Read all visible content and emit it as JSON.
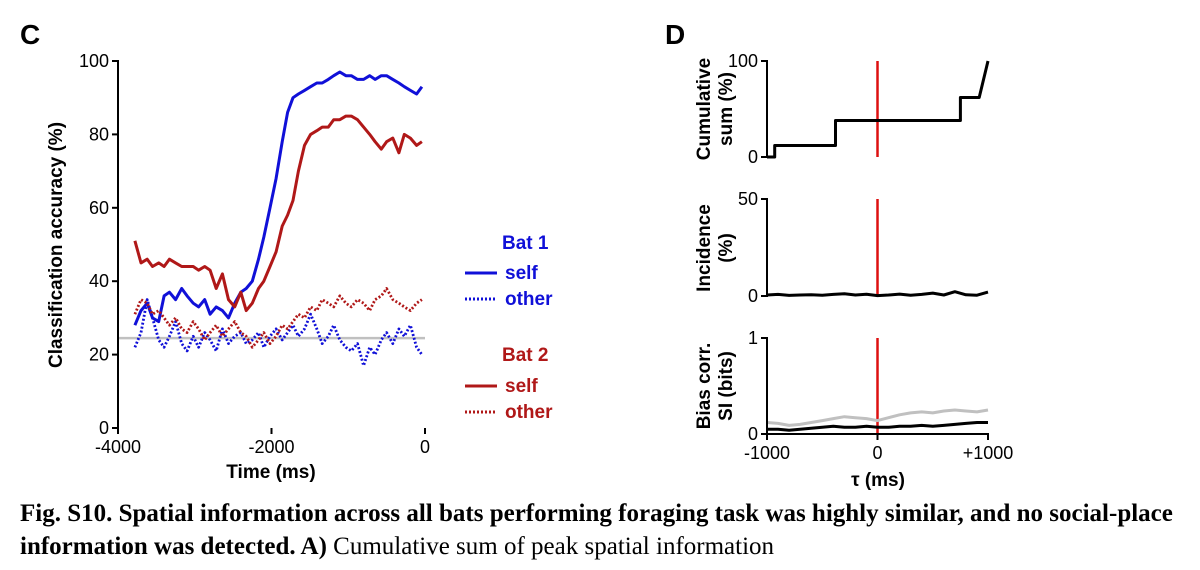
{
  "panels": {
    "c_label": "C",
    "d_label": "D"
  },
  "colors": {
    "blue": "#1010d8",
    "red": "#b01818",
    "gray": "#c0c0c0",
    "vline": "#dd1010",
    "black": "#000000"
  },
  "legend": {
    "bat1_title": "Bat 1",
    "bat1_self": "self",
    "bat1_other": "other",
    "bat2_title": "Bat 2",
    "bat2_self": "self",
    "bat2_other": "other"
  },
  "caption": {
    "bold": "Fig. S10. Spatial information across all bats performing foraging task was highly similar, and no social-place information was detected. A)",
    "normal": " Cumulative sum of peak spatial information"
  },
  "chart_data": [
    {
      "type": "line",
      "panel": "C",
      "xlabel": "Time (ms)",
      "ylabel": "Classification accuracy (%)",
      "xlim": [
        -4000,
        0
      ],
      "ylim": [
        0,
        100
      ],
      "xticks": [
        -4000,
        -2000,
        0
      ],
      "xtick_labels": [
        "-4000",
        "-2000",
        "0"
      ],
      "yticks": [
        0,
        20,
        40,
        60,
        80,
        100
      ],
      "chance_level": 24.5,
      "series": [
        {
          "name": "Bat 1 self",
          "color": "#1010d8",
          "style": "solid",
          "x": [
            -3780,
            -3700,
            -3620,
            -3550,
            -3470,
            -3400,
            -3330,
            -3250,
            -3170,
            -3100,
            -3020,
            -2950,
            -2870,
            -2800,
            -2720,
            -2640,
            -2560,
            -2480,
            -2400,
            -2330,
            -2250,
            -2170,
            -2100,
            -2020,
            -1940,
            -1860,
            -1790,
            -1720,
            -1650,
            -1570,
            -1490,
            -1410,
            -1340,
            -1260,
            -1190,
            -1110,
            -1030,
            -960,
            -880,
            -800,
            -720,
            -650,
            -570,
            -500,
            -420,
            -340,
            -270,
            -190,
            -110,
            -40
          ],
          "y": [
            28,
            32,
            34,
            30,
            29,
            36,
            37,
            35,
            38,
            36,
            34,
            33,
            35,
            31,
            33,
            32,
            30,
            34,
            37,
            38,
            40,
            46,
            52,
            60,
            68,
            78,
            86,
            90,
            91,
            92,
            93,
            94,
            94,
            95,
            96,
            97,
            96,
            96,
            95,
            95,
            96,
            95,
            96,
            96,
            95,
            94,
            93,
            92,
            91,
            93
          ]
        },
        {
          "name": "Bat 1 other",
          "color": "#1010d8",
          "style": "dotted",
          "x": [
            -3780,
            -3700,
            -3620,
            -3550,
            -3470,
            -3400,
            -3330,
            -3250,
            -3170,
            -3100,
            -3020,
            -2950,
            -2870,
            -2800,
            -2720,
            -2640,
            -2560,
            -2480,
            -2400,
            -2330,
            -2250,
            -2170,
            -2100,
            -2020,
            -1940,
            -1860,
            -1790,
            -1720,
            -1650,
            -1570,
            -1490,
            -1410,
            -1340,
            -1260,
            -1190,
            -1110,
            -1030,
            -960,
            -880,
            -800,
            -720,
            -650,
            -570,
            -500,
            -420,
            -340,
            -270,
            -190,
            -110,
            -40
          ],
          "y": [
            22,
            26,
            35,
            30,
            24,
            22,
            25,
            29,
            23,
            21,
            25,
            22,
            26,
            24,
            21,
            27,
            23,
            25,
            26,
            23,
            24,
            26,
            22,
            25,
            27,
            24,
            26,
            28,
            25,
            27,
            31,
            27,
            23,
            25,
            28,
            24,
            22,
            21,
            23,
            17,
            22,
            20,
            24,
            26,
            23,
            27,
            25,
            28,
            22,
            20
          ]
        },
        {
          "name": "Bat 2 self",
          "color": "#b01818",
          "style": "solid",
          "x": [
            -3780,
            -3700,
            -3620,
            -3550,
            -3470,
            -3400,
            -3330,
            -3250,
            -3170,
            -3100,
            -3020,
            -2950,
            -2870,
            -2800,
            -2720,
            -2640,
            -2560,
            -2480,
            -2400,
            -2330,
            -2250,
            -2170,
            -2100,
            -2020,
            -1940,
            -1860,
            -1790,
            -1720,
            -1650,
            -1570,
            -1490,
            -1410,
            -1340,
            -1260,
            -1190,
            -1110,
            -1030,
            -960,
            -880,
            -800,
            -720,
            -650,
            -570,
            -500,
            -420,
            -340,
            -270,
            -190,
            -110,
            -40
          ],
          "y": [
            51,
            45,
            46,
            44,
            45,
            44,
            46,
            45,
            44,
            44,
            44,
            43,
            44,
            43,
            38,
            42,
            35,
            33,
            37,
            32,
            34,
            38,
            40,
            44,
            48,
            55,
            58,
            62,
            70,
            77,
            80,
            81,
            82,
            82,
            84,
            84,
            85,
            85,
            84,
            82,
            80,
            78,
            76,
            78,
            79,
            75,
            80,
            79,
            77,
            78
          ]
        },
        {
          "name": "Bat 2 other",
          "color": "#b01818",
          "style": "dotted",
          "x": [
            -3780,
            -3700,
            -3620,
            -3550,
            -3470,
            -3400,
            -3330,
            -3250,
            -3170,
            -3100,
            -3020,
            -2950,
            -2870,
            -2800,
            -2720,
            -2640,
            -2560,
            -2480,
            -2400,
            -2330,
            -2250,
            -2170,
            -2100,
            -2020,
            -1940,
            -1860,
            -1790,
            -1720,
            -1650,
            -1570,
            -1490,
            -1410,
            -1340,
            -1260,
            -1190,
            -1110,
            -1030,
            -960,
            -880,
            -800,
            -720,
            -650,
            -570,
            -500,
            -420,
            -340,
            -270,
            -190,
            -110,
            -40
          ],
          "y": [
            31,
            35,
            34,
            31,
            32,
            30,
            28,
            30,
            27,
            26,
            29,
            27,
            24,
            26,
            28,
            25,
            27,
            29,
            26,
            25,
            22,
            24,
            26,
            23,
            25,
            28,
            27,
            29,
            31,
            30,
            33,
            32,
            35,
            34,
            33,
            36,
            34,
            33,
            35,
            34,
            32,
            35,
            36,
            38,
            35,
            34,
            33,
            32,
            34,
            35
          ]
        }
      ]
    },
    {
      "type": "line",
      "panel": "D-top",
      "ylabel": [
        "Cumulative",
        "sum (%)"
      ],
      "xlim": [
        -1000,
        1000
      ],
      "ylim": [
        0,
        100
      ],
      "yticks": [
        0,
        100
      ],
      "series": [
        {
          "color": "#000000",
          "style": "step",
          "x": [
            -1000,
            -930,
            -930,
            -380,
            -380,
            620,
            620,
            750,
            750,
            920,
            1000
          ],
          "y": [
            0,
            0,
            12,
            12,
            38,
            38,
            38,
            38,
            62,
            62,
            100
          ]
        }
      ]
    },
    {
      "type": "line",
      "panel": "D-middle",
      "ylabel": [
        "Incidence",
        "(%)"
      ],
      "xlim": [
        -1000,
        1000
      ],
      "ylim": [
        0,
        50
      ],
      "yticks": [
        0,
        50
      ],
      "series": [
        {
          "color": "#000000",
          "style": "solid",
          "x": [
            -1000,
            -900,
            -800,
            -700,
            -600,
            -500,
            -400,
            -300,
            -200,
            -100,
            0,
            100,
            200,
            300,
            400,
            500,
            600,
            700,
            800,
            900,
            1000
          ],
          "y": [
            0.5,
            0.8,
            0.3,
            0.5,
            0.6,
            0.4,
            0.8,
            1.2,
            0.5,
            0.9,
            0.2,
            0.5,
            1.0,
            0.4,
            0.8,
            1.5,
            0.5,
            2.2,
            0.6,
            0.4,
            2.0
          ]
        }
      ]
    },
    {
      "type": "line",
      "panel": "D-bottom",
      "ylabel": [
        "Bias corr.",
        "SI (bits)"
      ],
      "xlabel": "τ (ms)",
      "xlim": [
        -1000,
        1000
      ],
      "ylim": [
        0,
        1
      ],
      "yticks": [
        0,
        1
      ],
      "xticks": [
        -1000,
        0,
        1000
      ],
      "xtick_labels": [
        "-1000",
        "0",
        "+1000"
      ],
      "vline": 0,
      "series": [
        {
          "color": "#c0c0c0",
          "style": "solid",
          "x": [
            -1000,
            -900,
            -800,
            -700,
            -600,
            -500,
            -400,
            -300,
            -200,
            -100,
            0,
            100,
            200,
            300,
            400,
            500,
            600,
            700,
            800,
            900,
            1000
          ],
          "y": [
            0.12,
            0.11,
            0.09,
            0.1,
            0.12,
            0.14,
            0.16,
            0.18,
            0.17,
            0.16,
            0.14,
            0.17,
            0.2,
            0.22,
            0.23,
            0.22,
            0.24,
            0.25,
            0.24,
            0.23,
            0.25
          ]
        },
        {
          "color": "#000000",
          "style": "solid",
          "x": [
            -1000,
            -900,
            -800,
            -700,
            -600,
            -500,
            -400,
            -300,
            -200,
            -100,
            0,
            100,
            200,
            300,
            400,
            500,
            600,
            700,
            800,
            900,
            1000
          ],
          "y": [
            0.05,
            0.05,
            0.04,
            0.05,
            0.06,
            0.07,
            0.08,
            0.07,
            0.07,
            0.08,
            0.07,
            0.07,
            0.08,
            0.08,
            0.09,
            0.08,
            0.09,
            0.1,
            0.11,
            0.12,
            0.12
          ]
        }
      ]
    }
  ]
}
